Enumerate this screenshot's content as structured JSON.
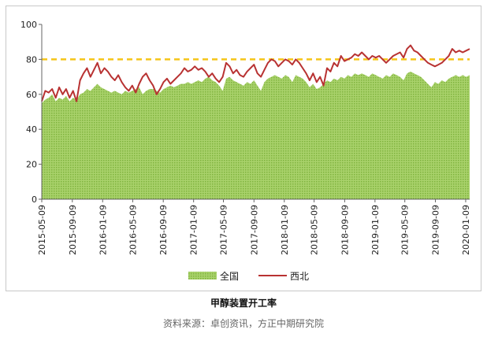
{
  "caption": "甲醇装置开工率",
  "source": "资料来源：卓创资讯，方正中期研究院",
  "colors": {
    "national": "#8cc04a",
    "northwest": "#b83232",
    "reference": "#f5c518"
  },
  "chart_data": {
    "type": "area",
    "ylim": [
      0,
      100
    ],
    "yticks": [
      0,
      20,
      40,
      60,
      80,
      100
    ],
    "xlim": [
      "2015-05-09",
      "2020-01-25"
    ],
    "xticks": [
      "2015-05-09",
      "2015-09-09",
      "2016-01-09",
      "2016-05-09",
      "2016-09-09",
      "2017-01-09",
      "2017-05-09",
      "2017-09-09",
      "2018-01-09",
      "2018-05-09",
      "2018-09-09",
      "2019-01-09",
      "2019-05-09",
      "2019-09-09",
      "2020-01-09"
    ],
    "reference_line": 80,
    "grid": false,
    "legend_position": "bottom",
    "series": [
      {
        "name": "全国",
        "type": "area",
        "points": [
          [
            "2015-05-09",
            55
          ],
          [
            "2015-05-23",
            57
          ],
          [
            "2015-06-06",
            58
          ],
          [
            "2015-06-20",
            60
          ],
          [
            "2015-07-04",
            56
          ],
          [
            "2015-07-18",
            58
          ],
          [
            "2015-08-01",
            57
          ],
          [
            "2015-08-15",
            59
          ],
          [
            "2015-08-29",
            56
          ],
          [
            "2015-09-12",
            58
          ],
          [
            "2015-09-26",
            57
          ],
          [
            "2015-10-10",
            60
          ],
          [
            "2015-10-24",
            61
          ],
          [
            "2015-11-07",
            63
          ],
          [
            "2015-11-21",
            62
          ],
          [
            "2015-12-05",
            64
          ],
          [
            "2015-12-19",
            66
          ],
          [
            "2016-01-02",
            64
          ],
          [
            "2016-01-16",
            63
          ],
          [
            "2016-01-30",
            62
          ],
          [
            "2016-02-13",
            61
          ],
          [
            "2016-02-27",
            62
          ],
          [
            "2016-03-12",
            61
          ],
          [
            "2016-03-26",
            60
          ],
          [
            "2016-04-09",
            62
          ],
          [
            "2016-04-23",
            61
          ],
          [
            "2016-05-07",
            62
          ],
          [
            "2016-05-21",
            63
          ],
          [
            "2016-06-04",
            64
          ],
          [
            "2016-06-18",
            60
          ],
          [
            "2016-07-02",
            62
          ],
          [
            "2016-07-16",
            63
          ],
          [
            "2016-07-30",
            63
          ],
          [
            "2016-08-13",
            62
          ],
          [
            "2016-08-27",
            61
          ],
          [
            "2016-09-10",
            63
          ],
          [
            "2016-09-24",
            64
          ],
          [
            "2016-10-08",
            65
          ],
          [
            "2016-10-22",
            64
          ],
          [
            "2016-11-05",
            65
          ],
          [
            "2016-11-19",
            66
          ],
          [
            "2016-12-03",
            66
          ],
          [
            "2016-12-17",
            67
          ],
          [
            "2016-12-31",
            66
          ],
          [
            "2017-01-14",
            67
          ],
          [
            "2017-01-28",
            68
          ],
          [
            "2017-02-11",
            67
          ],
          [
            "2017-02-25",
            69
          ],
          [
            "2017-03-11",
            70
          ],
          [
            "2017-03-25",
            68
          ],
          [
            "2017-04-08",
            67
          ],
          [
            "2017-04-22",
            65
          ],
          [
            "2017-05-06",
            62
          ],
          [
            "2017-05-20",
            69
          ],
          [
            "2017-06-03",
            70
          ],
          [
            "2017-06-17",
            68
          ],
          [
            "2017-07-01",
            67
          ],
          [
            "2017-07-15",
            66
          ],
          [
            "2017-07-29",
            65
          ],
          [
            "2017-08-12",
            67
          ],
          [
            "2017-08-26",
            66
          ],
          [
            "2017-09-09",
            68
          ],
          [
            "2017-09-23",
            65
          ],
          [
            "2017-10-07",
            62
          ],
          [
            "2017-10-21",
            67
          ],
          [
            "2017-11-04",
            69
          ],
          [
            "2017-11-18",
            70
          ],
          [
            "2017-12-02",
            71
          ],
          [
            "2017-12-16",
            70
          ],
          [
            "2017-12-30",
            69
          ],
          [
            "2018-01-13",
            71
          ],
          [
            "2018-01-27",
            70
          ],
          [
            "2018-02-10",
            67
          ],
          [
            "2018-02-24",
            71
          ],
          [
            "2018-03-10",
            70
          ],
          [
            "2018-03-24",
            69
          ],
          [
            "2018-04-07",
            67
          ],
          [
            "2018-04-21",
            64
          ],
          [
            "2018-05-05",
            66
          ],
          [
            "2018-05-19",
            63
          ],
          [
            "2018-06-02",
            64
          ],
          [
            "2018-06-16",
            66
          ],
          [
            "2018-06-30",
            68
          ],
          [
            "2018-07-14",
            67
          ],
          [
            "2018-07-28",
            69
          ],
          [
            "2018-08-11",
            68
          ],
          [
            "2018-08-25",
            70
          ],
          [
            "2018-09-08",
            69
          ],
          [
            "2018-09-22",
            71
          ],
          [
            "2018-10-06",
            70
          ],
          [
            "2018-10-20",
            72
          ],
          [
            "2018-11-03",
            71
          ],
          [
            "2018-11-17",
            72
          ],
          [
            "2018-12-01",
            71
          ],
          [
            "2018-12-15",
            70
          ],
          [
            "2018-12-29",
            72
          ],
          [
            "2019-01-12",
            71
          ],
          [
            "2019-01-26",
            70
          ],
          [
            "2019-02-09",
            69
          ],
          [
            "2019-02-23",
            71
          ],
          [
            "2019-03-09",
            70
          ],
          [
            "2019-03-23",
            72
          ],
          [
            "2019-04-06",
            71
          ],
          [
            "2019-04-20",
            70
          ],
          [
            "2019-05-04",
            68
          ],
          [
            "2019-05-18",
            72
          ],
          [
            "2019-06-01",
            73
          ],
          [
            "2019-06-15",
            72
          ],
          [
            "2019-06-29",
            71
          ],
          [
            "2019-07-13",
            70
          ],
          [
            "2019-07-27",
            68
          ],
          [
            "2019-08-10",
            66
          ],
          [
            "2019-08-24",
            64
          ],
          [
            "2019-09-07",
            67
          ],
          [
            "2019-09-21",
            66
          ],
          [
            "2019-10-05",
            68
          ],
          [
            "2019-10-19",
            67
          ],
          [
            "2019-11-02",
            69
          ],
          [
            "2019-11-16",
            70
          ],
          [
            "2019-11-30",
            71
          ],
          [
            "2019-12-14",
            70
          ],
          [
            "2019-12-28",
            71
          ],
          [
            "2020-01-11",
            70
          ],
          [
            "2020-01-25",
            71
          ]
        ]
      },
      {
        "name": "西北",
        "type": "line",
        "points": [
          [
            "2015-05-09",
            56
          ],
          [
            "2015-05-23",
            62
          ],
          [
            "2015-06-06",
            61
          ],
          [
            "2015-06-20",
            63
          ],
          [
            "2015-07-04",
            58
          ],
          [
            "2015-07-18",
            64
          ],
          [
            "2015-08-01",
            60
          ],
          [
            "2015-08-15",
            63
          ],
          [
            "2015-08-29",
            58
          ],
          [
            "2015-09-12",
            62
          ],
          [
            "2015-09-26",
            56
          ],
          [
            "2015-10-10",
            68
          ],
          [
            "2015-10-24",
            72
          ],
          [
            "2015-11-07",
            75
          ],
          [
            "2015-11-21",
            70
          ],
          [
            "2015-12-05",
            74
          ],
          [
            "2015-12-19",
            78
          ],
          [
            "2016-01-02",
            72
          ],
          [
            "2016-01-16",
            75
          ],
          [
            "2016-01-30",
            73
          ],
          [
            "2016-02-13",
            70
          ],
          [
            "2016-02-27",
            68
          ],
          [
            "2016-03-12",
            71
          ],
          [
            "2016-03-26",
            67
          ],
          [
            "2016-04-09",
            64
          ],
          [
            "2016-04-23",
            62
          ],
          [
            "2016-05-07",
            65
          ],
          [
            "2016-05-21",
            61
          ],
          [
            "2016-06-04",
            66
          ],
          [
            "2016-06-18",
            70
          ],
          [
            "2016-07-02",
            72
          ],
          [
            "2016-07-16",
            68
          ],
          [
            "2016-07-30",
            65
          ],
          [
            "2016-08-13",
            60
          ],
          [
            "2016-08-27",
            63
          ],
          [
            "2016-09-10",
            67
          ],
          [
            "2016-09-24",
            69
          ],
          [
            "2016-10-08",
            66
          ],
          [
            "2016-10-22",
            68
          ],
          [
            "2016-11-05",
            70
          ],
          [
            "2016-11-19",
            72
          ],
          [
            "2016-12-03",
            75
          ],
          [
            "2016-12-17",
            73
          ],
          [
            "2016-12-31",
            74
          ],
          [
            "2017-01-14",
            76
          ],
          [
            "2017-01-28",
            74
          ],
          [
            "2017-02-11",
            75
          ],
          [
            "2017-02-25",
            73
          ],
          [
            "2017-03-11",
            70
          ],
          [
            "2017-03-25",
            72
          ],
          [
            "2017-04-08",
            69
          ],
          [
            "2017-04-22",
            67
          ],
          [
            "2017-05-06",
            70
          ],
          [
            "2017-05-20",
            78
          ],
          [
            "2017-06-03",
            76
          ],
          [
            "2017-06-17",
            72
          ],
          [
            "2017-07-01",
            74
          ],
          [
            "2017-07-15",
            71
          ],
          [
            "2017-07-29",
            70
          ],
          [
            "2017-08-12",
            73
          ],
          [
            "2017-08-26",
            75
          ],
          [
            "2017-09-09",
            77
          ],
          [
            "2017-09-23",
            72
          ],
          [
            "2017-10-07",
            70
          ],
          [
            "2017-10-21",
            74
          ],
          [
            "2017-11-04",
            78
          ],
          [
            "2017-11-18",
            80
          ],
          [
            "2017-12-02",
            79
          ],
          [
            "2017-12-16",
            76
          ],
          [
            "2017-12-30",
            78
          ],
          [
            "2018-01-13",
            80
          ],
          [
            "2018-01-27",
            79
          ],
          [
            "2018-02-10",
            77
          ],
          [
            "2018-02-24",
            80
          ],
          [
            "2018-03-10",
            78
          ],
          [
            "2018-03-24",
            75
          ],
          [
            "2018-04-07",
            72
          ],
          [
            "2018-04-21",
            68
          ],
          [
            "2018-05-05",
            72
          ],
          [
            "2018-05-19",
            67
          ],
          [
            "2018-06-02",
            70
          ],
          [
            "2018-06-16",
            65
          ],
          [
            "2018-06-30",
            75
          ],
          [
            "2018-07-14",
            73
          ],
          [
            "2018-07-28",
            78
          ],
          [
            "2018-08-11",
            76
          ],
          [
            "2018-08-25",
            82
          ],
          [
            "2018-09-08",
            79
          ],
          [
            "2018-09-22",
            80
          ],
          [
            "2018-10-06",
            81
          ],
          [
            "2018-10-20",
            83
          ],
          [
            "2018-11-03",
            82
          ],
          [
            "2018-11-17",
            84
          ],
          [
            "2018-12-01",
            82
          ],
          [
            "2018-12-15",
            80
          ],
          [
            "2018-12-29",
            82
          ],
          [
            "2019-01-12",
            81
          ],
          [
            "2019-01-26",
            82
          ],
          [
            "2019-02-09",
            80
          ],
          [
            "2019-02-23",
            78
          ],
          [
            "2019-03-09",
            80
          ],
          [
            "2019-03-23",
            82
          ],
          [
            "2019-04-06",
            83
          ],
          [
            "2019-04-20",
            84
          ],
          [
            "2019-05-04",
            81
          ],
          [
            "2019-05-18",
            86
          ],
          [
            "2019-06-01",
            88
          ],
          [
            "2019-06-15",
            85
          ],
          [
            "2019-06-29",
            84
          ],
          [
            "2019-07-13",
            82
          ],
          [
            "2019-07-27",
            80
          ],
          [
            "2019-08-10",
            78
          ],
          [
            "2019-08-24",
            77
          ],
          [
            "2019-09-07",
            76
          ],
          [
            "2019-09-21",
            77
          ],
          [
            "2019-10-05",
            78
          ],
          [
            "2019-10-19",
            80
          ],
          [
            "2019-11-02",
            82
          ],
          [
            "2019-11-16",
            86
          ],
          [
            "2019-11-30",
            84
          ],
          [
            "2019-12-14",
            85
          ],
          [
            "2019-12-28",
            84
          ],
          [
            "2020-01-11",
            85
          ],
          [
            "2020-01-25",
            86
          ]
        ]
      }
    ]
  }
}
